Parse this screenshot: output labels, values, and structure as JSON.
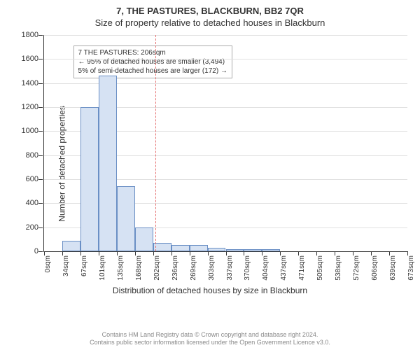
{
  "title_line1": "7, THE PASTURES, BLACKBURN, BB2 7QR",
  "title_line2": "Size of property relative to detached houses in Blackburn",
  "ylabel": "Number of detached properties",
  "xlabel": "Distribution of detached houses by size in Blackburn",
  "footer_line1": "Contains HM Land Registry data © Crown copyright and database right 2024.",
  "footer_line2": "Contains public sector information licensed under the Open Government Licence v3.0.",
  "annot_line1": "7 THE PASTURES: 206sqm",
  "annot_line2": "← 95% of detached houses are smaller (3,494)",
  "annot_line3": "5% of semi-detached houses are larger (172) →",
  "chart": {
    "type": "histogram",
    "ylim": [
      0,
      1800
    ],
    "ytick_step": 200,
    "yticks": [
      0,
      200,
      400,
      600,
      800,
      1000,
      1200,
      1400,
      1600,
      1800
    ],
    "xticks": [
      "0sqm",
      "34sqm",
      "67sqm",
      "101sqm",
      "135sqm",
      "168sqm",
      "202sqm",
      "236sqm",
      "269sqm",
      "303sqm",
      "337sqm",
      "370sqm",
      "404sqm",
      "437sqm",
      "471sqm",
      "505sqm",
      "538sqm",
      "572sqm",
      "606sqm",
      "639sqm",
      "673sqm"
    ],
    "n_bins": 20,
    "bar_values": [
      0,
      90,
      1200,
      1460,
      540,
      200,
      70,
      55,
      50,
      30,
      20,
      15,
      15,
      0,
      0,
      0,
      0,
      0,
      0,
      0
    ],
    "bar_fill": "#d6e2f3",
    "bar_stroke": "#6a8fc5",
    "bar_stroke_width": 1,
    "grid_color": "#e0e0e0",
    "axis_color": "#333333",
    "background_color": "#ffffff",
    "ref_line_value": 206,
    "ref_line_color": "#e57373",
    "annot_left_pct": 8,
    "annot_top_pct": 5,
    "tick_fontsize": 10,
    "label_fontsize": 12,
    "title_fontsize": 13
  }
}
